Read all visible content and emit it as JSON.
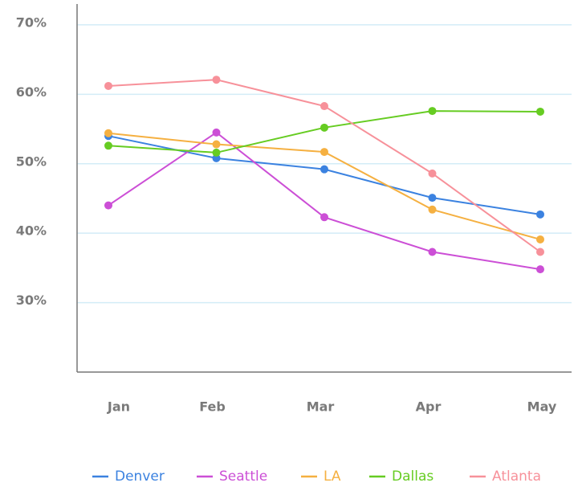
{
  "chart_data": {
    "type": "line",
    "categories": [
      "Jan",
      "Feb",
      "Mar",
      "Apr",
      "May"
    ],
    "series": [
      {
        "name": "Denver",
        "color": "#3b82e0",
        "values": [
          54.0,
          50.8,
          49.2,
          45.1,
          42.7
        ]
      },
      {
        "name": "Seattle",
        "color": "#cc4fd6",
        "values": [
          44.0,
          54.5,
          42.3,
          37.3,
          34.8
        ]
      },
      {
        "name": "LA",
        "color": "#f5b041",
        "values": [
          54.4,
          52.8,
          51.7,
          43.4,
          39.1
        ]
      },
      {
        "name": "Dallas",
        "color": "#66cc22",
        "values": [
          52.6,
          51.6,
          55.2,
          57.6,
          57.5
        ]
      },
      {
        "name": "Atlanta",
        "color": "#f7919a",
        "values": [
          61.2,
          62.1,
          58.3,
          48.6,
          37.3
        ]
      }
    ],
    "ylim": [
      20,
      73
    ],
    "yticks": [
      {
        "value": 30,
        "label": "30%"
      },
      {
        "value": 40,
        "label": "40%"
      },
      {
        "value": 50,
        "label": "50%"
      },
      {
        "value": 60,
        "label": "60%"
      },
      {
        "value": 70,
        "label": "70%"
      }
    ],
    "grid": true,
    "legend": "bottom"
  }
}
